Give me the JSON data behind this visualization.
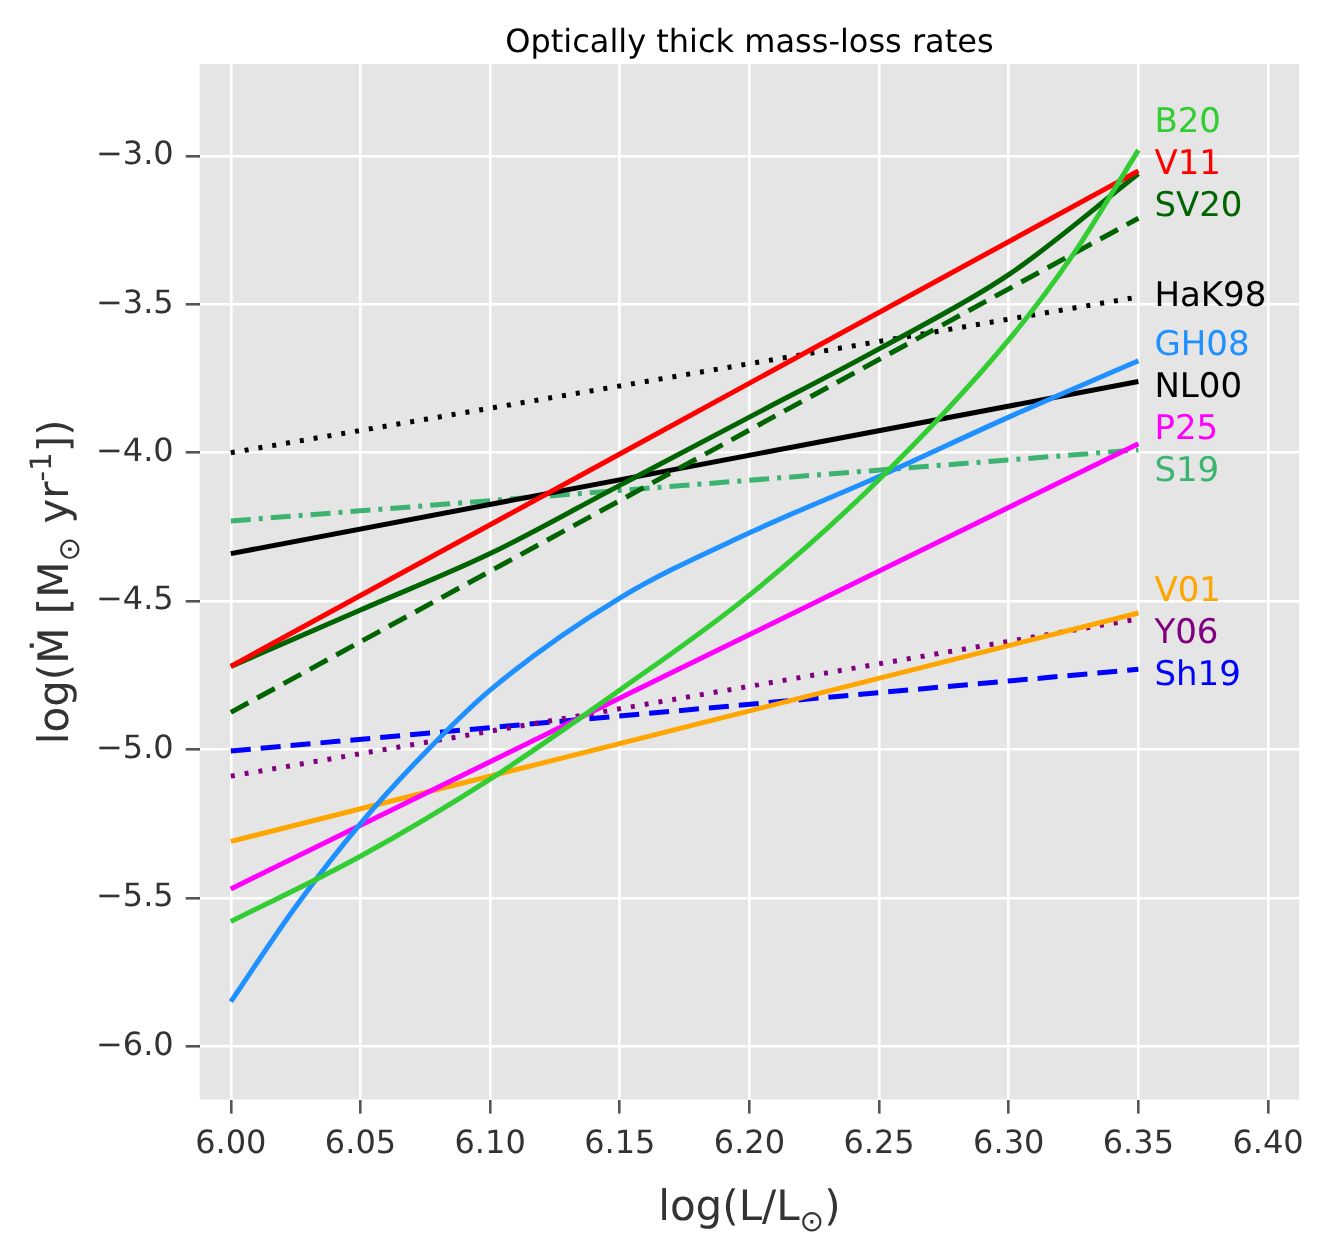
{
  "chart_data": {
    "type": "line",
    "title": "Optically thick mass-loss rates",
    "xlabel": "log(L/L$_{⊙}$)",
    "ylabel": "log(Ṁ [M$_{⊙}$ yr$^{-1}$])",
    "xlim": [
      5.988,
      6.412
    ],
    "ylim": [
      -6.18,
      -2.69
    ],
    "xticks": [
      {
        "value": 6.0,
        "label": "6.00"
      },
      6.05,
      {
        "value": 6.1,
        "label": "6.10"
      },
      6.15,
      {
        "value": 6.2,
        "label": "6.20"
      },
      6.25,
      {
        "value": 6.3,
        "label": "6.30"
      },
      6.35,
      {
        "value": 6.4,
        "label": "6.40"
      }
    ],
    "yticks": [
      {
        "value": -6.0,
        "label": "−6.0"
      },
      {
        "value": -5.5,
        "label": "−5.5"
      },
      {
        "value": -5.0,
        "label": "−5.0"
      },
      {
        "value": -4.5,
        "label": "−4.5"
      },
      {
        "value": -4.0,
        "label": "−4.0"
      },
      {
        "value": -3.5,
        "label": "−3.5"
      },
      {
        "value": -3.0,
        "label": "−3.0"
      }
    ],
    "grid": true,
    "legend": false,
    "marker": "none",
    "series": [
      {
        "name": "B20",
        "color": "#32cd32",
        "line_style": "solid",
        "x": [
          6.0,
          6.05,
          6.1,
          6.15,
          6.2,
          6.25,
          6.3,
          6.325,
          6.35
        ],
        "values": [
          -5.58,
          -5.36,
          -5.1,
          -4.8,
          -4.48,
          -4.09,
          -3.62,
          -3.33,
          -2.98
        ]
      },
      {
        "name": "V11",
        "color": "#ff0000",
        "line_style": "solid",
        "x": [
          6.0,
          6.35
        ],
        "values": [
          -4.72,
          -3.05
        ]
      },
      {
        "name": "SV20",
        "color": "#006400",
        "line_style": "solid",
        "x": [
          6.0,
          6.05,
          6.1,
          6.15,
          6.2,
          6.25,
          6.3,
          6.35
        ],
        "values": [
          -4.72,
          -4.53,
          -4.34,
          -4.11,
          -3.88,
          -3.65,
          -3.4,
          -3.06
        ]
      },
      {
        "color": "#006400",
        "line_style": "dashed",
        "x": [
          6.0,
          6.35
        ],
        "values": [
          -4.875,
          -3.21
        ]
      },
      {
        "name": "HaK98",
        "color": "#000000",
        "line_style": "dotted",
        "x": [
          6.0,
          6.35
        ],
        "values": [
          -4.0,
          -3.475
        ]
      },
      {
        "name": "GH08",
        "color": "#1e90ff",
        "line_style": "solid",
        "x": [
          6.0,
          6.025,
          6.05,
          6.075,
          6.1,
          6.15,
          6.2,
          6.25,
          6.3,
          6.35
        ],
        "values": [
          -5.85,
          -5.53,
          -5.25,
          -5.01,
          -4.8,
          -4.49,
          -4.27,
          -4.08,
          -3.88,
          -3.69
        ]
      },
      {
        "name": "NL00",
        "color": "#000000",
        "line_style": "solid",
        "x": [
          6.0,
          6.35
        ],
        "values": [
          -4.34,
          -3.76
        ]
      },
      {
        "name": "P25",
        "color": "#ff00ff",
        "line_style": "solid",
        "x": [
          6.0,
          6.35
        ],
        "values": [
          -5.47,
          -3.97
        ]
      },
      {
        "name": "S19",
        "color": "#3cb371",
        "line_style": "dashdot",
        "x": [
          6.0,
          6.35
        ],
        "values": [
          -4.23,
          -3.99
        ]
      },
      {
        "name": "V01",
        "color": "#ffa500",
        "line_style": "solid",
        "x": [
          6.0,
          6.35
        ],
        "values": [
          -5.31,
          -4.54
        ]
      },
      {
        "name": "Y06",
        "color": "#800080",
        "line_style": "dotted",
        "x": [
          6.0,
          6.35
        ],
        "values": [
          -5.09,
          -4.56
        ]
      },
      {
        "name": "Sh19",
        "color": "#0000ff",
        "line_style": "dashed",
        "x": [
          6.0,
          6.35
        ],
        "values": [
          -5.005,
          -4.73
        ]
      }
    ]
  }
}
